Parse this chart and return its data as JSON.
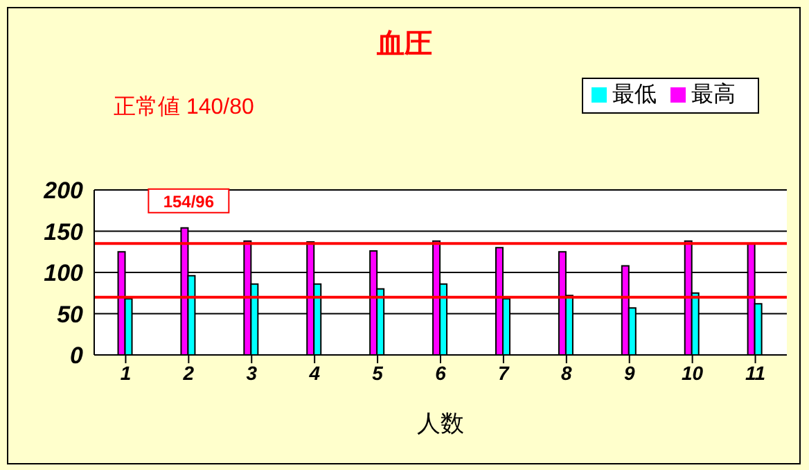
{
  "chart_data": {
    "type": "bar",
    "title": "血圧",
    "subtitle": "正常値 140/80",
    "xlabel": "人数",
    "categories": [
      "1",
      "2",
      "3",
      "4",
      "5",
      "6",
      "7",
      "8",
      "9",
      "10",
      "11"
    ],
    "series": [
      {
        "name": "最高",
        "color": "#ff00ff",
        "values": [
          125,
          154,
          138,
          137,
          126,
          138,
          130,
          125,
          108,
          138,
          135
        ]
      },
      {
        "name": "最低",
        "color": "#00ffff",
        "values": [
          68,
          96,
          86,
          86,
          80,
          86,
          68,
          72,
          57,
          75,
          62
        ]
      }
    ],
    "ylim": [
      0,
      200
    ],
    "yticks": [
      0,
      50,
      100,
      150,
      200
    ],
    "grid": "y",
    "legend": "top right",
    "ref_lines": [
      {
        "axis": "y",
        "value": 135,
        "color": "#ff0000"
      },
      {
        "axis": "y",
        "value": 70,
        "color": "#ff0000"
      }
    ],
    "annotations": [
      {
        "text": "154/96",
        "x": "2",
        "y": 154
      }
    ]
  }
}
